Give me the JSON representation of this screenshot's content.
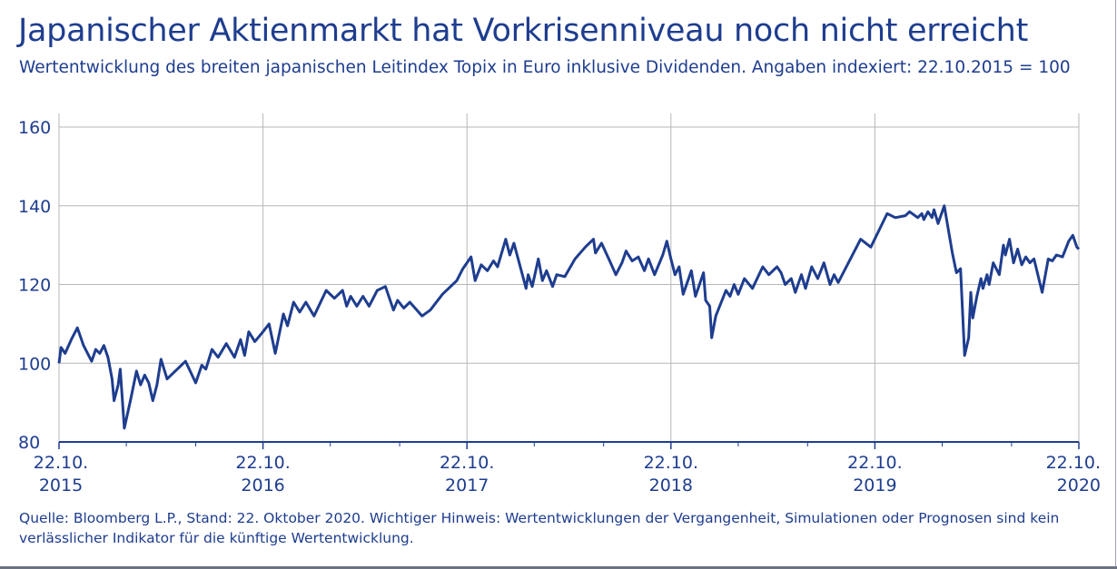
{
  "header": {
    "title": "Japanischer Aktienmarkt hat Vorkrisenniveau noch nicht erreicht",
    "subtitle": "Wertentwicklung des breiten japanischen Leitindex Topix in Euro inklusive Dividenden. Angaben indexiert: 22.10.2015 = 100"
  },
  "footnote": "Quelle: Bloomberg L.P., Stand: 22. Oktober 2020. Wichtiger Hinweis: Wertentwicklungen der Vergangenheit, Simulationen oder Prognosen sind kein verlässlicher Indikator für die künftige Wertentwicklung.",
  "colors": {
    "line": "#1e3d8f",
    "text": "#1e3d8f",
    "grid": "#b7b7b7"
  },
  "chart_data": {
    "type": "line",
    "title": "Japanischer Aktienmarkt hat Vorkrisenniveau noch nicht erreicht",
    "ylim": [
      80,
      160
    ],
    "yticks": [
      80,
      100,
      120,
      140,
      160
    ],
    "xlim": [
      2015,
      2020
    ],
    "xticks": [
      {
        "x": 2015,
        "day": "22.10.",
        "year": "2015"
      },
      {
        "x": 2016,
        "day": "22.10.",
        "year": "2016"
      },
      {
        "x": 2017,
        "day": "22.10.",
        "year": "2017"
      },
      {
        "x": 2018,
        "day": "22.10.",
        "year": "2018"
      },
      {
        "x": 2019,
        "day": "22.10.",
        "year": "2019"
      },
      {
        "x": 2020,
        "day": "22.10.",
        "year": "2020"
      }
    ],
    "grid": true,
    "series": [
      {
        "name": "",
        "points": [
          [
            2015.0,
            100.0
          ],
          [
            2015.01,
            104.0
          ],
          [
            2015.03,
            102.5
          ],
          [
            2015.06,
            106.0
          ],
          [
            2015.09,
            109.0
          ],
          [
            2015.12,
            104.5
          ],
          [
            2015.16,
            100.5
          ],
          [
            2015.18,
            103.5
          ],
          [
            2015.2,
            102.5
          ],
          [
            2015.22,
            104.5
          ],
          [
            2015.24,
            101.5
          ],
          [
            2015.26,
            96.0
          ],
          [
            2015.27,
            90.5
          ],
          [
            2015.29,
            94.5
          ],
          [
            2015.3,
            98.5
          ],
          [
            2015.32,
            83.5
          ],
          [
            2015.35,
            90.5
          ],
          [
            2015.38,
            98.0
          ],
          [
            2015.4,
            94.5
          ],
          [
            2015.42,
            97.0
          ],
          [
            2015.44,
            95.0
          ],
          [
            2015.46,
            90.5
          ],
          [
            2015.48,
            94.5
          ],
          [
            2015.5,
            101.0
          ],
          [
            2015.53,
            96.0
          ],
          [
            2015.57,
            98.0
          ],
          [
            2015.62,
            100.5
          ],
          [
            2015.67,
            95.0
          ],
          [
            2015.7,
            99.5
          ],
          [
            2015.72,
            98.5
          ],
          [
            2015.75,
            103.5
          ],
          [
            2015.78,
            101.5
          ],
          [
            2015.82,
            105.0
          ],
          [
            2015.86,
            101.5
          ],
          [
            2015.89,
            106.0
          ],
          [
            2015.91,
            102.0
          ],
          [
            2015.93,
            108.0
          ],
          [
            2015.96,
            105.5
          ],
          [
            2016.0,
            108.0
          ],
          [
            2016.03,
            110.0
          ],
          [
            2016.06,
            102.5
          ],
          [
            2016.1,
            112.5
          ],
          [
            2016.12,
            109.5
          ],
          [
            2016.15,
            115.5
          ],
          [
            2016.18,
            113.0
          ],
          [
            2016.21,
            115.5
          ],
          [
            2016.25,
            112.0
          ],
          [
            2016.31,
            118.5
          ],
          [
            2016.35,
            116.5
          ],
          [
            2016.39,
            118.5
          ],
          [
            2016.41,
            114.5
          ],
          [
            2016.43,
            117.0
          ],
          [
            2016.46,
            114.5
          ],
          [
            2016.49,
            117.0
          ],
          [
            2016.52,
            114.5
          ],
          [
            2016.56,
            118.5
          ],
          [
            2016.6,
            119.5
          ],
          [
            2016.64,
            113.5
          ],
          [
            2016.66,
            116.0
          ],
          [
            2016.69,
            114.0
          ],
          [
            2016.72,
            115.5
          ],
          [
            2016.78,
            112.0
          ],
          [
            2016.82,
            113.5
          ],
          [
            2016.88,
            117.5
          ],
          [
            2016.95,
            121.0
          ],
          [
            2016.98,
            124.0
          ],
          [
            2017.02,
            127.0
          ],
          [
            2017.04,
            121.0
          ],
          [
            2017.07,
            125.0
          ],
          [
            2017.1,
            123.5
          ],
          [
            2017.13,
            126.0
          ],
          [
            2017.15,
            124.5
          ],
          [
            2017.19,
            131.5
          ],
          [
            2017.21,
            127.5
          ],
          [
            2017.23,
            130.5
          ],
          [
            2017.29,
            119.0
          ],
          [
            2017.3,
            122.5
          ],
          [
            2017.32,
            119.5
          ],
          [
            2017.35,
            126.5
          ],
          [
            2017.37,
            121.0
          ],
          [
            2017.39,
            123.5
          ],
          [
            2017.42,
            119.5
          ],
          [
            2017.44,
            122.5
          ],
          [
            2017.48,
            122.0
          ],
          [
            2017.53,
            126.5
          ],
          [
            2017.58,
            129.5
          ],
          [
            2017.62,
            131.5
          ],
          [
            2017.63,
            128.0
          ],
          [
            2017.66,
            130.5
          ],
          [
            2017.7,
            126.0
          ],
          [
            2017.73,
            122.5
          ],
          [
            2017.76,
            125.5
          ],
          [
            2017.78,
            128.5
          ],
          [
            2017.81,
            126.0
          ],
          [
            2017.84,
            127.0
          ],
          [
            2017.87,
            123.5
          ],
          [
            2017.89,
            126.5
          ],
          [
            2017.92,
            122.5
          ],
          [
            2017.96,
            127.5
          ],
          [
            2017.98,
            131.0
          ],
          [
            2018.0,
            126.5
          ],
          [
            2018.02,
            122.5
          ],
          [
            2018.04,
            124.5
          ],
          [
            2018.06,
            117.5
          ],
          [
            2018.08,
            120.5
          ],
          [
            2018.1,
            123.5
          ],
          [
            2018.12,
            117.0
          ],
          [
            2018.16,
            123.0
          ],
          [
            2018.17,
            116.0
          ],
          [
            2018.19,
            114.5
          ],
          [
            2018.2,
            106.5
          ],
          [
            2018.22,
            112.0
          ],
          [
            2018.27,
            118.5
          ],
          [
            2018.29,
            117.0
          ],
          [
            2018.31,
            120.0
          ],
          [
            2018.33,
            117.5
          ],
          [
            2018.36,
            121.5
          ],
          [
            2018.4,
            119.0
          ],
          [
            2018.45,
            124.5
          ],
          [
            2018.48,
            122.5
          ],
          [
            2018.52,
            124.5
          ],
          [
            2018.54,
            123.0
          ],
          [
            2018.56,
            120.0
          ],
          [
            2018.59,
            121.5
          ],
          [
            2018.61,
            118.0
          ],
          [
            2018.64,
            122.5
          ],
          [
            2018.66,
            119.0
          ],
          [
            2018.69,
            124.5
          ],
          [
            2018.72,
            121.5
          ],
          [
            2018.75,
            125.5
          ],
          [
            2018.78,
            120.0
          ],
          [
            2018.8,
            122.5
          ],
          [
            2018.82,
            120.5
          ],
          [
            2018.93,
            131.5
          ],
          [
            2018.98,
            129.5
          ],
          [
            2019.06,
            138.0
          ],
          [
            2019.1,
            137.0
          ],
          [
            2019.15,
            137.5
          ],
          [
            2019.17,
            138.5
          ],
          [
            2019.21,
            137.0
          ],
          [
            2019.23,
            138.0
          ],
          [
            2019.24,
            136.5
          ],
          [
            2019.26,
            138.5
          ],
          [
            2019.28,
            137.0
          ],
          [
            2019.29,
            139.0
          ],
          [
            2019.31,
            135.5
          ],
          [
            2019.34,
            140.0
          ],
          [
            2019.38,
            128.0
          ],
          [
            2019.4,
            123.0
          ],
          [
            2019.42,
            124.0
          ],
          [
            2019.44,
            102.0
          ],
          [
            2019.46,
            106.5
          ],
          [
            2019.47,
            118.0
          ],
          [
            2019.48,
            111.5
          ],
          [
            2019.5,
            117.0
          ],
          [
            2019.52,
            121.5
          ],
          [
            2019.53,
            119.0
          ],
          [
            2019.55,
            122.5
          ],
          [
            2019.56,
            120.0
          ],
          [
            2019.58,
            125.5
          ],
          [
            2019.61,
            122.5
          ],
          [
            2019.63,
            130.0
          ],
          [
            2019.64,
            127.5
          ],
          [
            2019.66,
            131.5
          ],
          [
            2019.68,
            125.5
          ],
          [
            2019.7,
            129.0
          ],
          [
            2019.72,
            125.0
          ],
          [
            2019.74,
            127.0
          ],
          [
            2019.76,
            125.5
          ],
          [
            2019.78,
            126.5
          ],
          [
            2019.82,
            118.0
          ],
          [
            2019.85,
            126.5
          ],
          [
            2019.87,
            126.0
          ],
          [
            2019.89,
            127.5
          ],
          [
            2019.92,
            127.0
          ],
          [
            2019.95,
            131.0
          ],
          [
            2019.97,
            132.5
          ],
          [
            2019.99,
            129.5
          ],
          [
            2020.0,
            129.0
          ]
        ]
      }
    ]
  }
}
